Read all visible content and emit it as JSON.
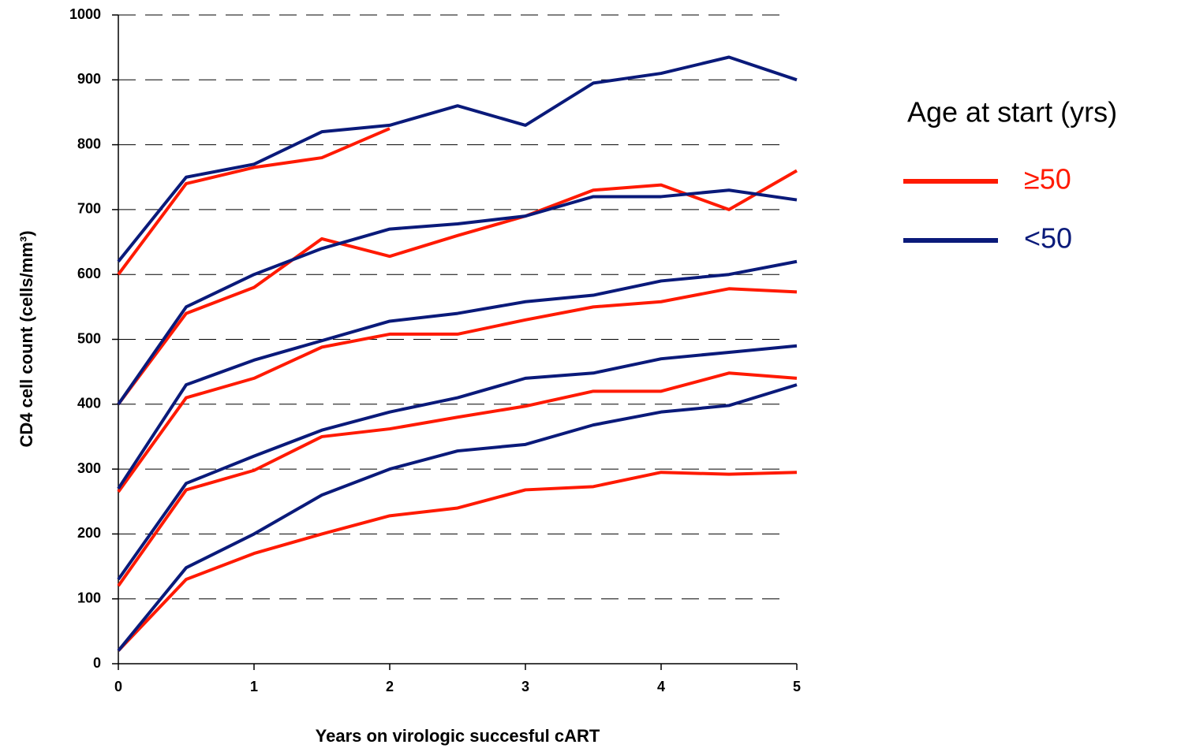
{
  "chart_data": {
    "type": "line",
    "x_label": "Years on virologic succesful cART",
    "y_label": "CD4 cell count (cells/mm³)",
    "legend_title": "Age at start (yrs)",
    "legend_position": "right",
    "grid": true,
    "x": [
      0,
      0.5,
      1,
      1.5,
      2,
      2.5,
      3,
      3.5,
      4,
      4.5,
      5
    ],
    "xlim": [
      0,
      5
    ],
    "xticks": [
      0,
      1,
      2,
      3,
      4,
      5
    ],
    "ylim": [
      0,
      1000
    ],
    "yticks": [
      0,
      100,
      200,
      300,
      400,
      500,
      600,
      700,
      800,
      900,
      1000
    ],
    "series": [
      {
        "name": "≥50",
        "color": "#ff1a00",
        "lines": [
          [
            600,
            740,
            765,
            780,
            825,
            null,
            null,
            null,
            null,
            null,
            null
          ],
          [
            400,
            540,
            580,
            655,
            628,
            660,
            690,
            730,
            738,
            700,
            760
          ],
          [
            265,
            410,
            440,
            488,
            508,
            508,
            530,
            550,
            558,
            578,
            573
          ],
          [
            120,
            268,
            298,
            350,
            362,
            380,
            397,
            420,
            420,
            448,
            440
          ],
          [
            20,
            130,
            170,
            200,
            228,
            240,
            268,
            273,
            295,
            292,
            295
          ]
        ]
      },
      {
        "name": "<50",
        "color": "#0a1a7a",
        "lines": [
          [
            620,
            750,
            770,
            820,
            830,
            860,
            830,
            895,
            910,
            935,
            900
          ],
          [
            400,
            550,
            600,
            640,
            670,
            678,
            690,
            720,
            720,
            730,
            715
          ],
          [
            270,
            430,
            468,
            498,
            528,
            540,
            558,
            568,
            590,
            600,
            620
          ],
          [
            130,
            278,
            320,
            360,
            388,
            410,
            440,
            448,
            470,
            480,
            490
          ],
          [
            20,
            148,
            200,
            260,
            300,
            328,
            338,
            368,
            388,
            398,
            430
          ]
        ]
      }
    ]
  }
}
